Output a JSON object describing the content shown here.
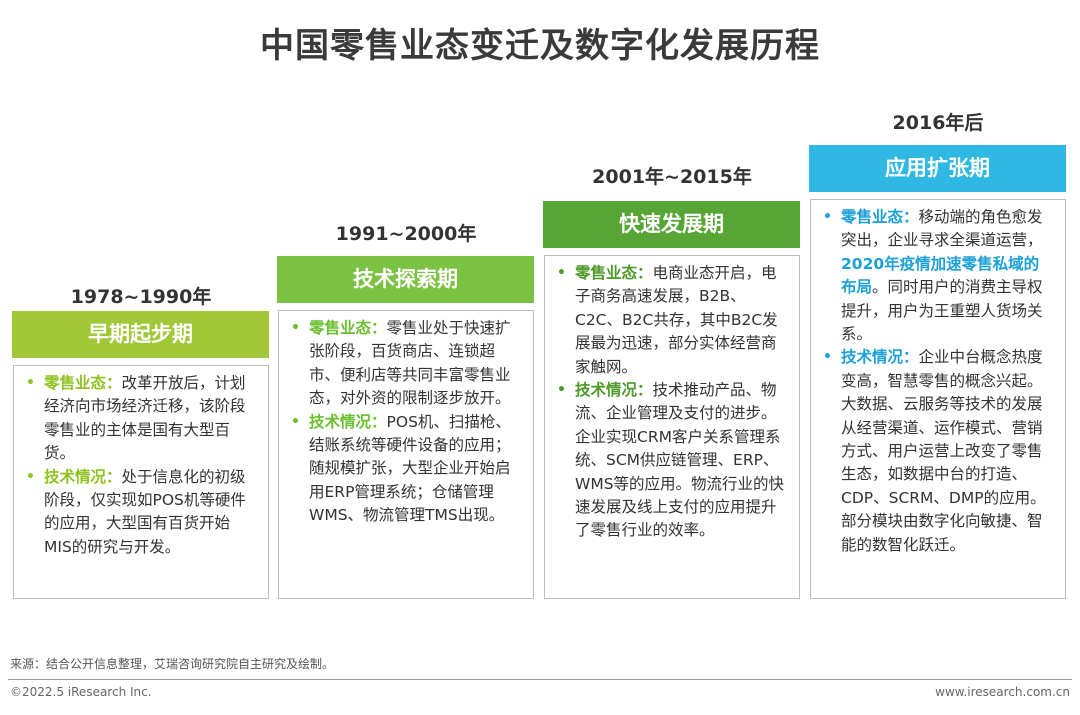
{
  "title": "中国零售业态变迁及数字化发展历程",
  "colors": {
    "stage1": "#a2c83a",
    "stage2": "#7cc242",
    "stage3": "#56a535",
    "stage4": "#2fb8e3",
    "highlight": "#1ba0d8"
  },
  "stages": [
    {
      "period": "1978~1990年",
      "name": "早期起步期",
      "retail_label": "零售业态：",
      "retail_text": "改革开放后，计划经济向市场经济迁移，该阶段零售业的主体是国有大型百货。",
      "tech_label": "技术情况：",
      "tech_text": "处于信息化的初级阶段，仅实现如POS机等硬件的应用，大型国有百货开始MIS的研究与开发。"
    },
    {
      "period": "1991~2000年",
      "name": "技术探索期",
      "retail_label": "零售业态：",
      "retail_text": "零售业处于快速扩张阶段，百货商店、连锁超市、便利店等共同丰富零售业态，对外资的限制逐步放开。",
      "tech_label": "技术情况：",
      "tech_text": "POS机、扫描枪、结账系统等硬件设备的应用；随规模扩张，大型企业开始启用ERP管理系统；仓储管理WMS、物流管理TMS出现。"
    },
    {
      "period": "2001年~2015年",
      "name": "快速发展期",
      "retail_label": "零售业态：",
      "retail_text": "电商业态开启，电子商务高速发展，B2B、C2C、B2C共存，其中B2C发展最为迅速，部分实体经营商家触网。",
      "tech_label": "技术情况：",
      "tech_text": "技术推动产品、物流、企业管理及支付的进步。企业实现CRM客户关系管理系统、SCM供应链管理、ERP、WMS等的应用。物流行业的快速发展及线上支付的应用提升了零售行业的效率。"
    },
    {
      "period": "2016年后",
      "name": "应用扩张期",
      "retail_label": "零售业态：",
      "retail_text_a": "移动端的角色愈发突出，企业寻求全渠道运营，",
      "retail_highlight": "2020年疫情加速零售私域的布局",
      "retail_text_b": "。同时用户的消费主导权提升，用户为王重塑人货场关系。",
      "tech_label": "技术情况：",
      "tech_text": "企业中台概念热度变高，智慧零售的概念兴起。大数据、云服务等技术的发展从经营渠道、运作模式、营销方式、用户运营上改变了零售生态，如数据中台的打造、CDP、SCRM、DMP的应用。部分模块由数字化向敏捷、智能的数智化跃迁。"
    }
  ],
  "bullet_char": "•",
  "footer": {
    "source": "来源：结合公开信息整理，艾瑞咨询研究院自主研究及绘制。",
    "copyright": "©2022.5 iResearch Inc.",
    "website": "www.iresearch.com.cn"
  }
}
